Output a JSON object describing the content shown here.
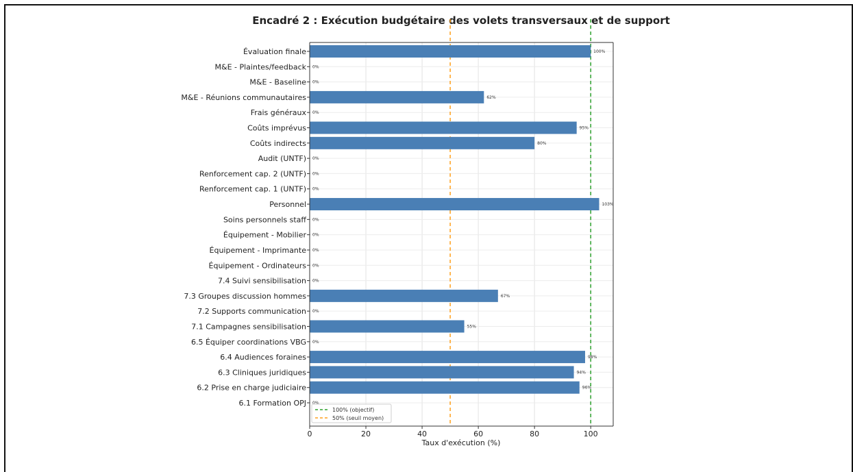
{
  "chart_data": {
    "type": "bar",
    "orientation": "horizontal",
    "title": "Encadré 2 : Exécution budgétaire des volets transversaux et de support",
    "xlabel": "Taux d'exécution (%)",
    "ylabel": "",
    "xlim": [
      0,
      108
    ],
    "xticks": [
      "0",
      "20",
      "40",
      "60",
      "80",
      "100"
    ],
    "grid": true,
    "categories": [
      "Évaluation finale",
      "M&E - Plaintes/feedback",
      "M&E - Baseline",
      "M&E - Réunions communautaires",
      "Frais généraux",
      "Coûts imprévus",
      "Coûts indirects",
      "Audit (UNTF)",
      "Renforcement cap. 2 (UNTF)",
      "Renforcement cap. 1 (UNTF)",
      "Personnel",
      "Soins personnels staff",
      "Équipement - Mobilier",
      "Équipement - Imprimante",
      "Équipement - Ordinateurs",
      "7.4 Suivi sensibilisation",
      "7.3 Groupes discussion hommes",
      "7.2 Supports communication",
      "7.1 Campagnes sensibilisation",
      "6.5 Équiper coordinations VBG",
      "6.4 Audiences foraines",
      "6.3 Cliniques juridiques",
      "6.2 Prise en charge judiciaire",
      "6.1 Formation OPJ"
    ],
    "values": [
      100,
      0,
      0,
      62,
      0,
      95,
      80,
      0,
      0,
      0,
      103,
      0,
      0,
      0,
      0,
      0,
      67,
      0,
      55,
      0,
      98,
      94,
      96,
      0
    ],
    "data_labels": [
      "100%",
      "0%",
      "0%",
      "62%",
      "0%",
      "95%",
      "80%",
      "0%",
      "0%",
      "0%",
      "103%",
      "0%",
      "0%",
      "0%",
      "0%",
      "0%",
      "67%",
      "0%",
      "55%",
      "0%",
      "98%",
      "94%",
      "96%",
      "0%"
    ],
    "reference_lines": [
      {
        "value": 100,
        "label": "100% (objectif)",
        "color": "#2ca02c"
      },
      {
        "value": 50,
        "label": "50% (seuil moyen)",
        "color": "#ff9f1a"
      }
    ],
    "legend_position": "bottom-left",
    "bar_color": "#4a7fb5"
  }
}
